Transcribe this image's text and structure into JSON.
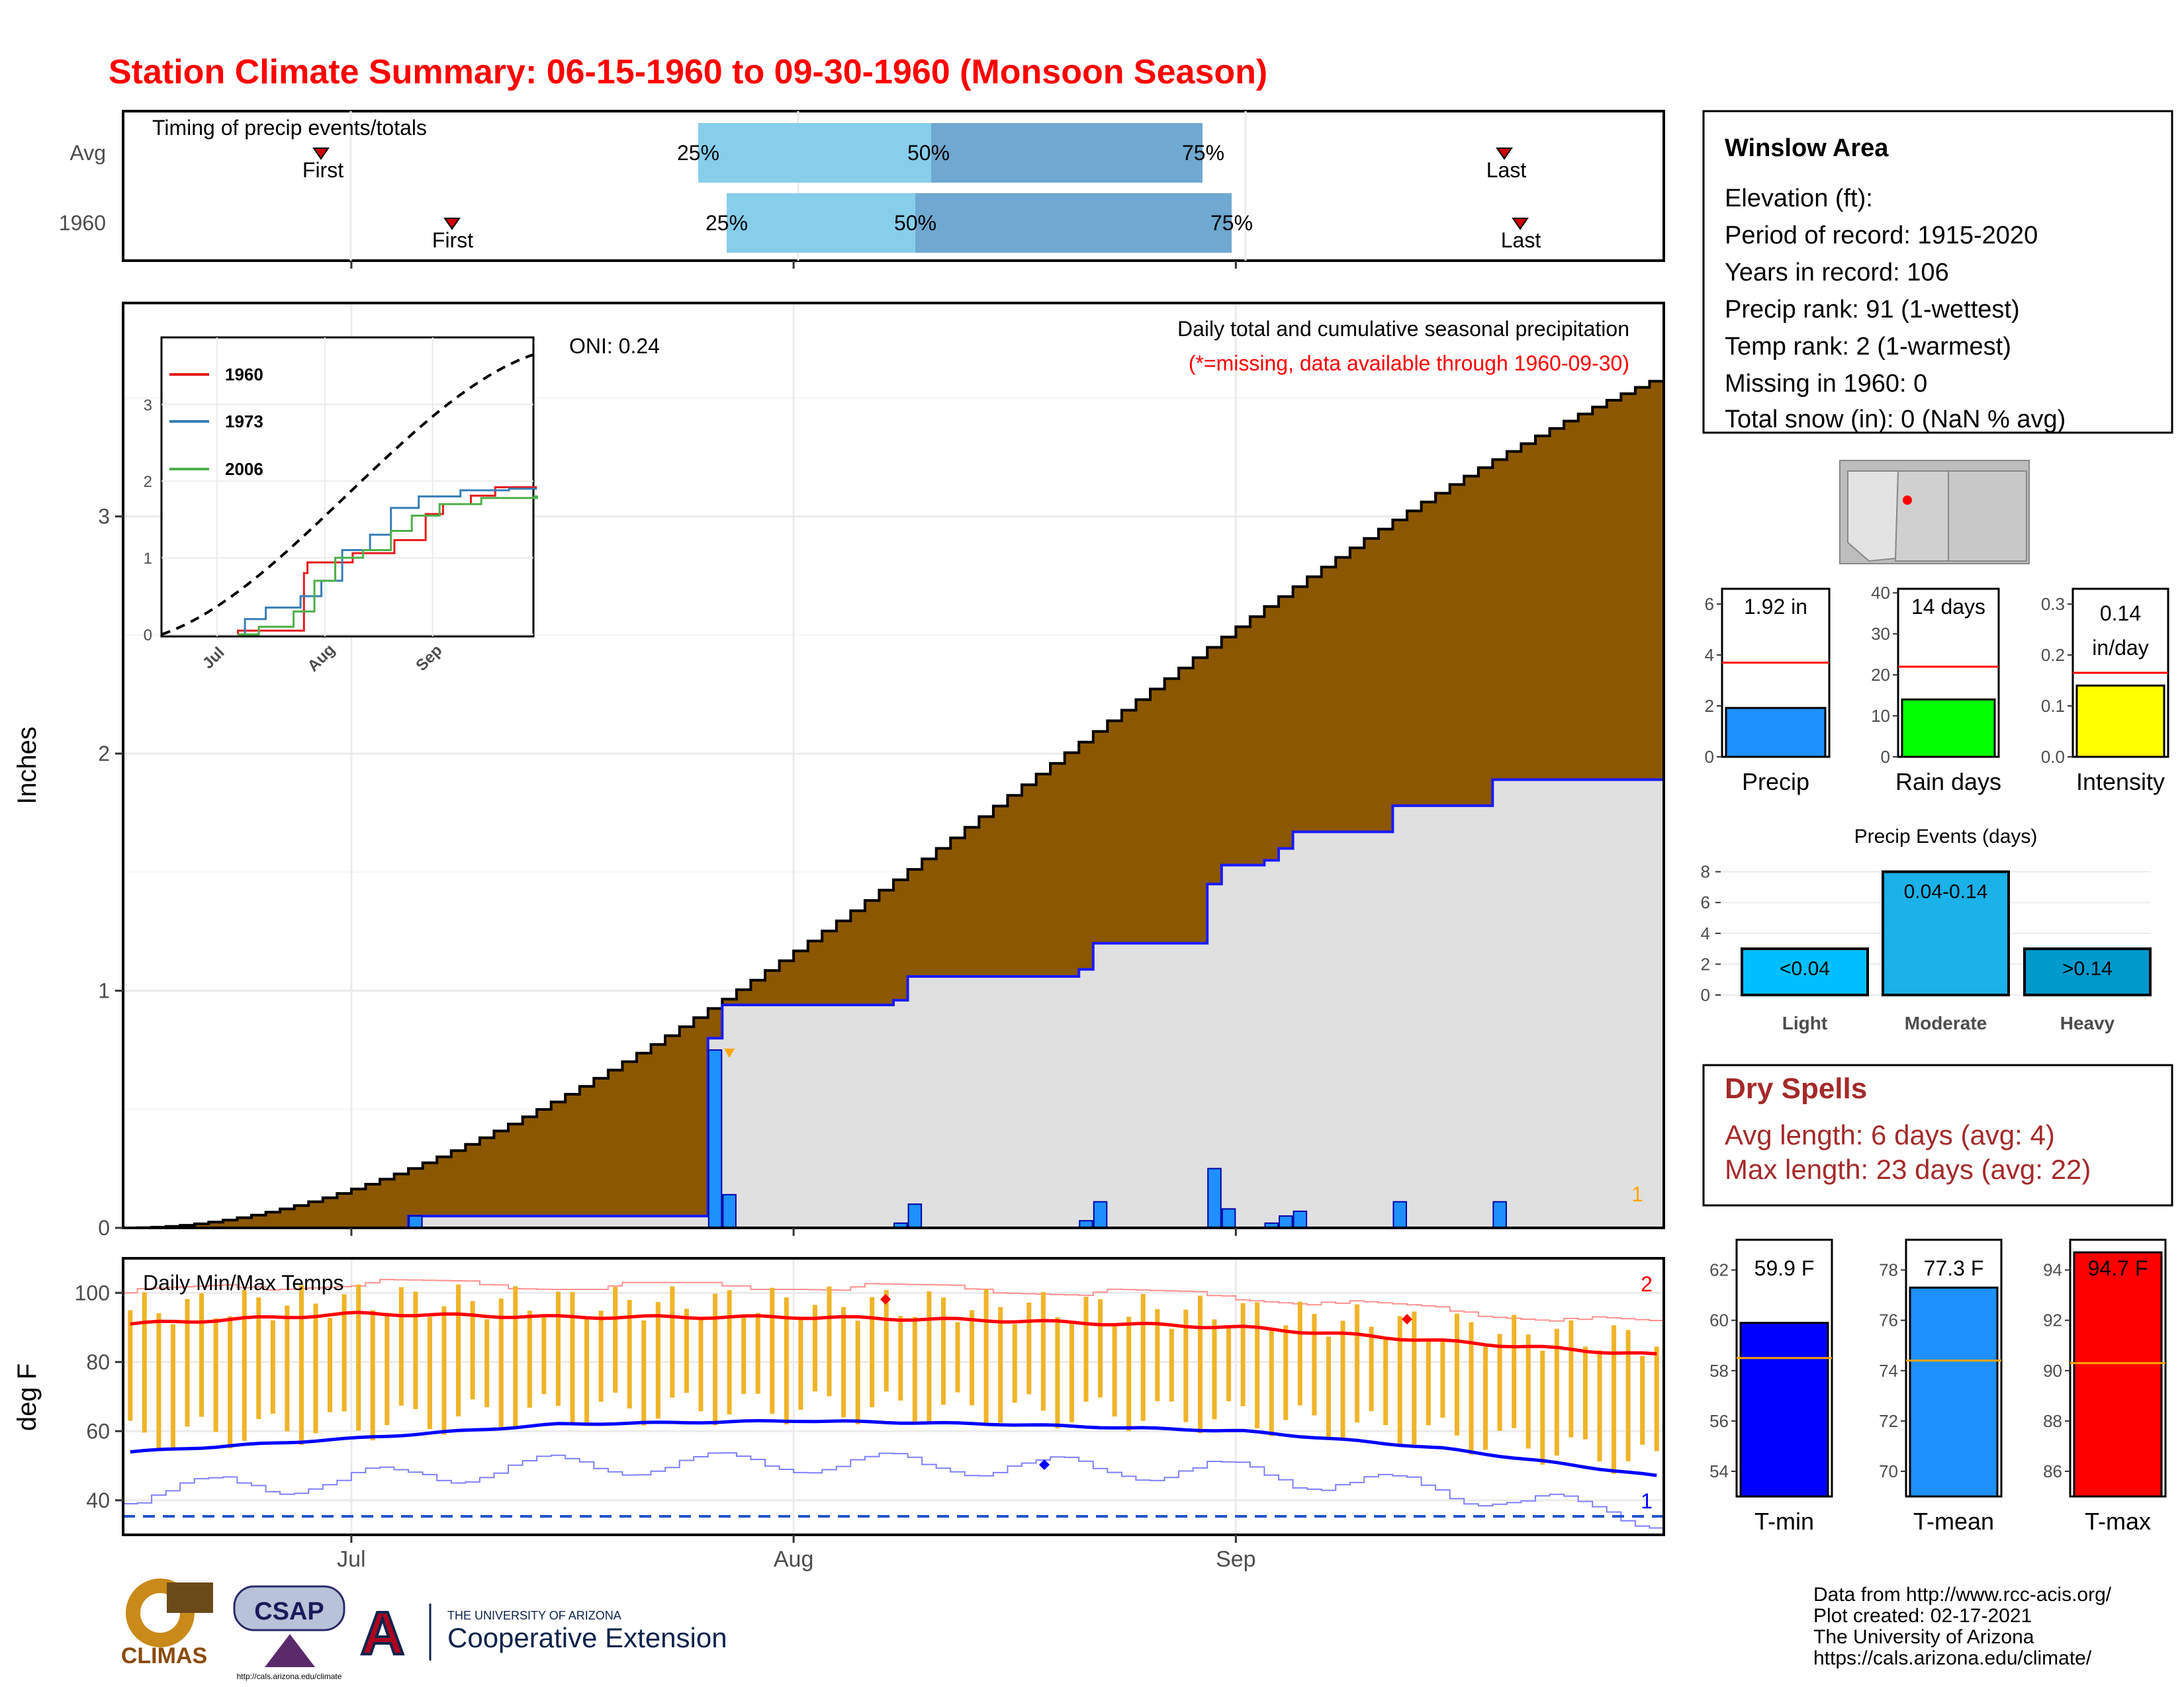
{
  "title": "Station Climate Summary: 06-15-1960 to 09-30-1960 (Monsoon Season)",
  "colors": {
    "title": "#ff0000",
    "cumulative_avg_fill": "#8B5700",
    "cumulative_year_fill": "#e0e0e0",
    "cumulative_year_line": "#1a1aff",
    "daily_bar": "#1e90ff",
    "q_light": "#87ceeb",
    "q_dark": "#6fa8d0",
    "tmax_bar": "#f0b429",
    "tmax_avg": "#ff0000",
    "tmin_avg": "#0000ff",
    "dry_spells_text": "#a52a2a"
  },
  "timing": {
    "label": "Timing of precip events/totals",
    "rows": [
      {
        "name": "Avg",
        "first_label": "First",
        "last_label": "Last",
        "q25": "25%",
        "q50": "50%",
        "q75": "75%"
      },
      {
        "name": "1960",
        "first_label": "First",
        "last_label": "Last",
        "q25": "25%",
        "q50": "50%",
        "q75": "75%"
      }
    ]
  },
  "precip_panel": {
    "ylabel": "Inches",
    "yticks": [
      "0",
      "1",
      "2",
      "3"
    ],
    "oni": "ONI: 0.24",
    "title": "Daily total and cumulative seasonal precipitation",
    "note": "(*=missing, data available through 1960-09-30)",
    "count_label": "1"
  },
  "inset": {
    "legend": [
      "1960",
      "1973",
      "2006"
    ],
    "legend_colors": [
      "#e41a1c",
      "#377eb8",
      "#4daf4a"
    ],
    "yticks": [
      "0",
      "1",
      "2",
      "3"
    ],
    "xticks": [
      "Jul",
      "Aug",
      "Sep"
    ]
  },
  "temp_panel": {
    "ylabel": "deg F",
    "title": "Daily Min/Max Temps",
    "yticks": [
      "40",
      "60",
      "80",
      "100"
    ],
    "xticks": [
      "Jul",
      "Aug",
      "Sep"
    ],
    "max_count": "2",
    "min_count": "1"
  },
  "station": {
    "name": "Winslow Area",
    "lines": [
      "Elevation (ft):",
      "Period of record: 1915-2020",
      "Years in record: 106",
      "Precip rank: 91 (1-wettest)",
      "Temp rank: 2 (1-warmest)",
      "Missing in 1960: 0",
      "Total snow (in): 0 (NaN % avg)"
    ]
  },
  "summary_bars": {
    "precip": {
      "label": "Precip",
      "value_text": "1.92 in",
      "value": 1.92,
      "avg": 3.7,
      "yticks": [
        "0",
        "2",
        "4",
        "6"
      ],
      "color": "#1e90ff"
    },
    "rain_days": {
      "label": "Rain days",
      "value_text": "14 days",
      "value": 14,
      "avg": 22,
      "yticks": [
        "0",
        "10",
        "20",
        "30",
        "40"
      ],
      "color": "#00ff00"
    },
    "intensity": {
      "label": "Intensity",
      "value_text_1": "0.14",
      "value_text_2": "in/day",
      "value": 0.14,
      "avg": 0.165,
      "yticks": [
        "0.0",
        "0.1",
        "0.2",
        "0.3"
      ],
      "color": "#ffff00"
    }
  },
  "precip_events": {
    "title": "Precip Events (days)",
    "yticks": [
      "0",
      "2",
      "4",
      "6",
      "8"
    ],
    "bars": [
      {
        "name": "Light",
        "label": "<0.04",
        "value": 3,
        "color": "#00bfff"
      },
      {
        "name": "Moderate",
        "label": "0.04-0.14",
        "value": 8,
        "color": "#1ab2e8"
      },
      {
        "name": "Heavy",
        "label": ">0.14",
        "value": 3,
        "color": "#0099cc"
      }
    ]
  },
  "dry_spells": {
    "title": "Dry Spells",
    "avg_line": "Avg length: 6 days (avg: 4)",
    "max_line": "Max length: 23 days (avg: 22)"
  },
  "temp_summary": {
    "tmin": {
      "label": "T-min",
      "value_text": "59.9 F",
      "value": 59.9,
      "avg": 58.5,
      "yticks": [
        "54",
        "56",
        "58",
        "60",
        "62"
      ],
      "color": "#0000ff"
    },
    "tmean": {
      "label": "T-mean",
      "value_text": "77.3 F",
      "value": 77.3,
      "avg": 74.4,
      "yticks": [
        "70",
        "72",
        "74",
        "76",
        "78"
      ],
      "color": "#1e90ff"
    },
    "tmax": {
      "label": "T-max",
      "value_text": "94.7 F",
      "value": 94.7,
      "avg": 90.3,
      "yticks": [
        "86",
        "88",
        "90",
        "92",
        "94"
      ],
      "color": "#ff0000"
    }
  },
  "footer": {
    "lines": [
      "Data from http://www.rcc-acis.org/",
      "Plot created: 02-17-2021",
      "The University of Arizona",
      "https://cals.arizona.edu/climate/"
    ],
    "logos": {
      "climas": "CLIMAS",
      "csap": "CSAP",
      "csap_url": "http://cals.arizona.edu/climate",
      "ua_small": "THE UNIVERSITY OF ARIZONA",
      "ua_big": "Cooperative Extension"
    }
  },
  "chart_data": [
    {
      "type": "bar",
      "title": "Daily total and cumulative seasonal precipitation",
      "ylabel": "Inches",
      "ylim": [
        0,
        3.9
      ],
      "x_range": [
        "1960-06-15",
        "1960-09-30"
      ],
      "xticks": [
        "Jul",
        "Aug",
        "Sep"
      ],
      "daily_precip_1960": [
        {
          "date": "1960-07-05",
          "value": 0.05
        },
        {
          "date": "1960-07-26",
          "value": 0.75
        },
        {
          "date": "1960-07-27",
          "value": 0.14
        },
        {
          "date": "1960-08-08",
          "value": 0.02
        },
        {
          "date": "1960-08-09",
          "value": 0.1
        },
        {
          "date": "1960-08-21",
          "value": 0.03
        },
        {
          "date": "1960-08-22",
          "value": 0.11
        },
        {
          "date": "1960-08-30",
          "value": 0.25
        },
        {
          "date": "1960-08-31",
          "value": 0.08
        },
        {
          "date": "1960-09-03",
          "value": 0.02
        },
        {
          "date": "1960-09-04",
          "value": 0.05
        },
        {
          "date": "1960-09-05",
          "value": 0.07
        },
        {
          "date": "1960-09-12",
          "value": 0.11
        },
        {
          "date": "1960-09-19",
          "value": 0.11
        }
      ],
      "cumulative_avg_end": 3.57,
      "cumulative_1960_end": 1.92
    },
    {
      "type": "line",
      "title": "Daily Min/Max Temps",
      "ylabel": "deg F",
      "ylim": [
        30,
        110
      ],
      "series": [
        {
          "name": "Avg max",
          "x": [
            "1960-06-15",
            "1960-07-01",
            "1960-07-15",
            "1960-08-01",
            "1960-08-15",
            "1960-09-01",
            "1960-09-15",
            "1960-09-30"
          ],
          "values": [
            91,
            94,
            93,
            93,
            92,
            90,
            86,
            82
          ]
        },
        {
          "name": "Avg min",
          "x": [
            "1960-06-15",
            "1960-07-01",
            "1960-07-15",
            "1960-08-01",
            "1960-08-15",
            "1960-09-01",
            "1960-09-15",
            "1960-09-30"
          ],
          "values": [
            54,
            58,
            62,
            63,
            62,
            60,
            55,
            47
          ]
        }
      ]
    }
  ]
}
